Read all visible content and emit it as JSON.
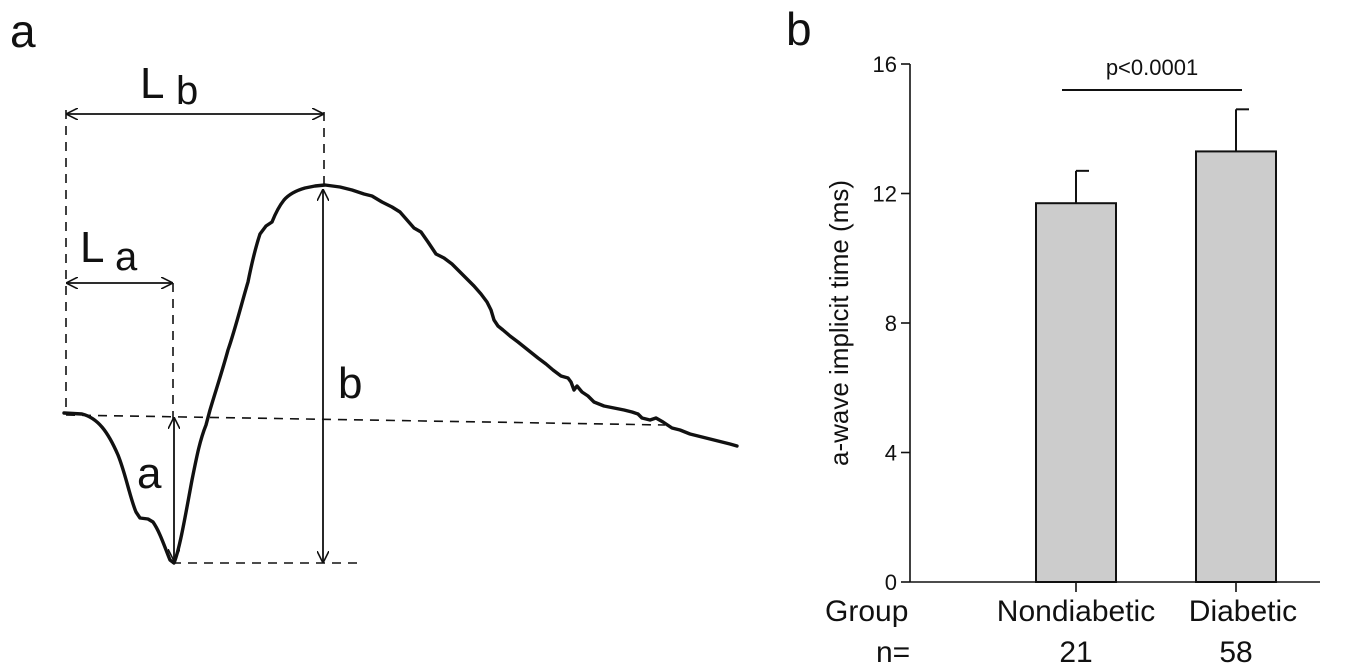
{
  "panel_a": {
    "letter": "a",
    "labels": {
      "Lb_main": "L",
      "Lb_sub": "b",
      "La_main": "L",
      "La_sub": "a",
      "b_amp": "b",
      "a_amp": "a"
    }
  },
  "panel_b": {
    "letter": "b",
    "row_labels": {
      "group": "Group",
      "n": "n="
    }
  },
  "colors": {
    "bar_fill": "#cccccc",
    "stroke": "#111111"
  },
  "chart_data": {
    "type": "bar",
    "title": "",
    "xlabel": "",
    "ylabel": "a-wave implicit time (ms)",
    "categories": [
      "Nondiabetic",
      "Diabetic"
    ],
    "n": [
      "21",
      "58"
    ],
    "values": [
      11.7,
      13.3
    ],
    "errors": [
      1.0,
      1.3
    ],
    "ylim": [
      0,
      16
    ],
    "yticks": [
      "0",
      "4",
      "8",
      "12",
      "16"
    ],
    "annotation": "p<0.0001"
  }
}
